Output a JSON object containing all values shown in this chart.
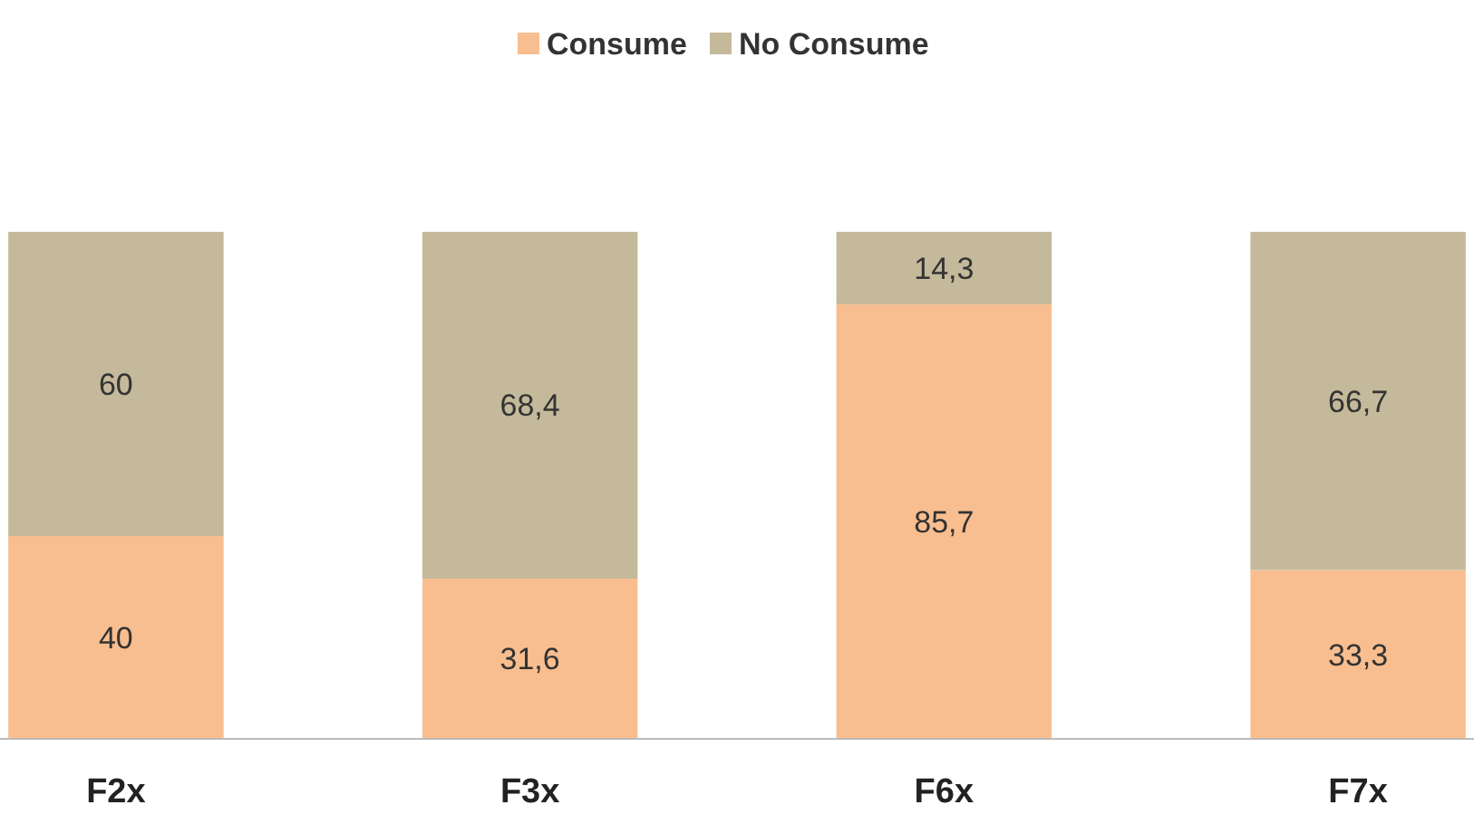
{
  "chart_data": {
    "type": "bar",
    "stacked": true,
    "legend": "top",
    "categories": [
      "F2x",
      "F3x",
      "F6x",
      "F7x"
    ],
    "series": [
      {
        "name": "Consume",
        "color": "#f9be8f",
        "values": [
          40,
          31.6,
          85.7,
          33.3
        ],
        "value_labels": [
          "40",
          "31,6",
          "85,7",
          "33,3"
        ]
      },
      {
        "name": "No Consume",
        "color": "#c4b99a",
        "values": [
          60,
          68.4,
          14.3,
          66.7
        ],
        "value_labels": [
          "60",
          "68,4",
          "14,3",
          "66,7"
        ]
      }
    ]
  }
}
